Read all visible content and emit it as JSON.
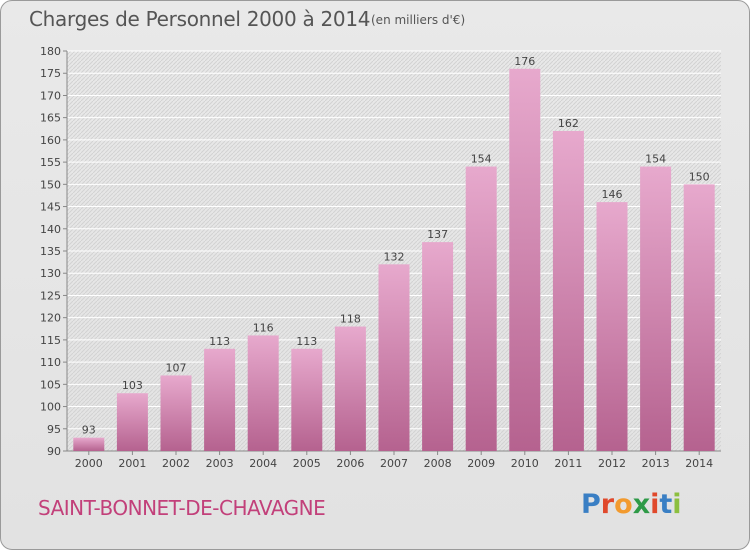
{
  "header": {
    "title": "Charges de Personnel 2000 à 2014",
    "unit": "(en milliers d'€)"
  },
  "footer": {
    "place": "SAINT-BONNET-DE-CHAVAGNE",
    "logo": "Proxiti"
  },
  "colors": {
    "bar_light": "#e7a9cd",
    "bar_dark": "#b5628f",
    "place_text": "#c2407a",
    "logo_letters": [
      "#3a7fc4",
      "#e0492c",
      "#f29a2e",
      "#2e9a47",
      "#e0492c",
      "#3a7fc4",
      "#8cbf3f"
    ]
  },
  "chart_data": {
    "type": "bar",
    "title": "Charges de Personnel 2000 à 2014",
    "subtitle": "(en milliers d'€)",
    "xlabel": "",
    "ylabel": "",
    "ylim": [
      90,
      180
    ],
    "yticks": [
      90,
      95,
      100,
      105,
      110,
      115,
      120,
      125,
      130,
      135,
      140,
      145,
      150,
      155,
      160,
      165,
      170,
      175,
      180
    ],
    "grid": true,
    "categories": [
      "2000",
      "2001",
      "2002",
      "2003",
      "2004",
      "2005",
      "2006",
      "2007",
      "2008",
      "2009",
      "2010",
      "2011",
      "2012",
      "2013",
      "2014"
    ],
    "values": [
      93,
      103,
      107,
      113,
      116,
      113,
      118,
      132,
      137,
      154,
      176,
      162,
      146,
      154,
      150
    ]
  }
}
